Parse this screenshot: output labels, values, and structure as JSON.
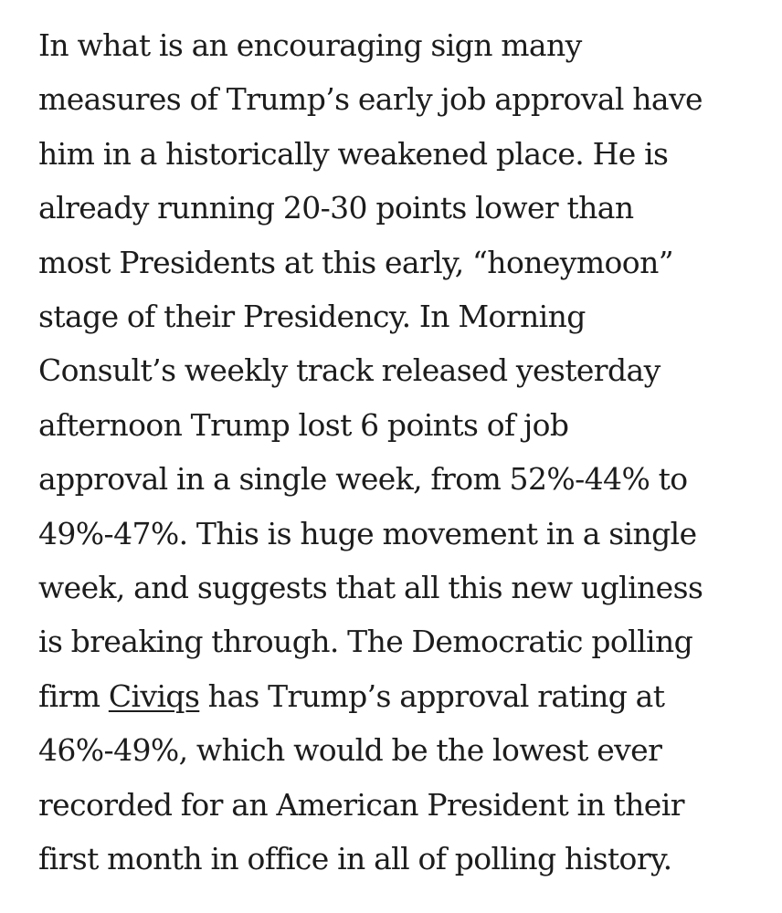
{
  "article": {
    "paragraph": {
      "lines": [
        "In what is an encouraging sign many",
        "measures of Trump’s early job approval have",
        "him in a historically weakened place. He is",
        "already running 20-30 points lower than",
        "most Presidents at this early, “honeymoon”",
        "stage of their Presidency. In Morning",
        "Consult’s weekly track released yesterday",
        "afternoon Trump lost 6 points of job",
        "approval in a single week, from 52%-44% to",
        "49%-47%. This is huge movement in a single",
        "week, and suggests that all this new ugliness",
        "is breaking through. The Democratic polling"
      ],
      "line13_before": "firm ",
      "link_text": "Civiqs",
      "line13_after": " has Trump’s approval rating at",
      "lines_end": [
        "46%-49%, which would be the lowest ever",
        "recorded for an American President in their",
        "first month in office in all of polling history."
      ]
    }
  }
}
